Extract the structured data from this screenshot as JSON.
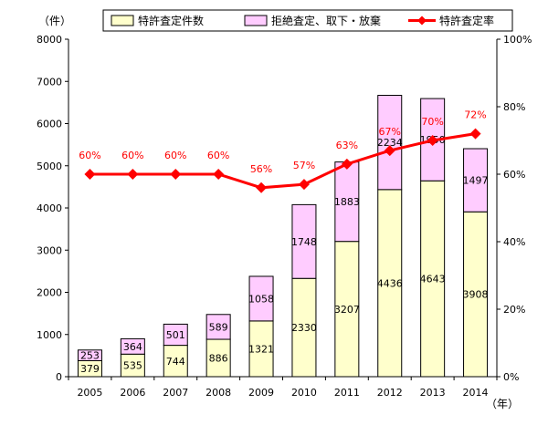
{
  "chart_data": {
    "type": "bar",
    "stacked": true,
    "title": "",
    "categories": [
      "2005",
      "2006",
      "2007",
      "2008",
      "2009",
      "2010",
      "2011",
      "2012",
      "2013",
      "2014"
    ],
    "series": [
      {
        "name": "特許査定件数",
        "color": "#ffffcc",
        "values": [
          379,
          535,
          744,
          886,
          1321,
          2330,
          3207,
          4436,
          4643,
          3908
        ]
      },
      {
        "name": "拒絶査定、取下・放棄",
        "color": "#ffccff",
        "values": [
          253,
          364,
          501,
          589,
          1058,
          1748,
          1883,
          2234,
          1950,
          1497
        ]
      }
    ],
    "line_series": {
      "name": "特許査定率",
      "color": "#ff0000",
      "axis": "right",
      "values": [
        60,
        60,
        60,
        60,
        56,
        57,
        63,
        67,
        70,
        72
      ],
      "labels": [
        "60%",
        "60%",
        "60%",
        "60%",
        "56%",
        "57%",
        "63%",
        "67%",
        "70%",
        "72%"
      ]
    },
    "y_left": {
      "unit": "（件）",
      "range": [
        0,
        8000
      ],
      "ticks": [
        "0",
        "1000",
        "2000",
        "3000",
        "4000",
        "5000",
        "6000",
        "7000",
        "8000"
      ]
    },
    "y_right": {
      "range": [
        0,
        100
      ],
      "ticks": [
        "0%",
        "20%",
        "40%",
        "60%",
        "80%",
        "100%"
      ]
    },
    "x_unit": "（年）",
    "legend_position": "top",
    "grid": false
  }
}
